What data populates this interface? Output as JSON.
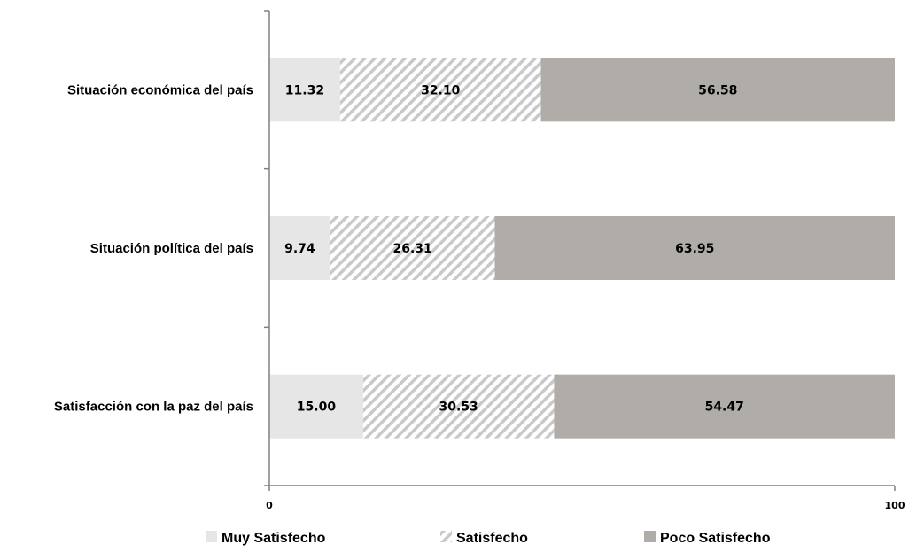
{
  "chart_data": {
    "type": "bar",
    "orientation": "horizontal",
    "stacked": true,
    "categories": [
      "Situación económica del país",
      "Situación política del país",
      "Satisfacción con la paz del país"
    ],
    "series": [
      {
        "name": "Muy Satisfecho",
        "values": [
          11.32,
          9.74,
          15.0
        ],
        "labels": [
          "11.32",
          "9.74",
          "15.00"
        ],
        "color": "#e7e6e6",
        "pattern": "solid"
      },
      {
        "name": "Satisfecho",
        "values": [
          32.1,
          26.31,
          30.53
        ],
        "labels": [
          "32.10",
          "26.31",
          "30.53"
        ],
        "color": "#c9c9c9",
        "pattern": "diagonal-stripes"
      },
      {
        "name": "Poco Satisfecho",
        "values": [
          56.58,
          63.95,
          54.47
        ],
        "labels": [
          "56.58",
          "63.95",
          "54.47"
        ],
        "color": "#b0aca7",
        "pattern": "solid"
      }
    ],
    "xlim": [
      0,
      100
    ],
    "x_ticks": [
      "0",
      "100"
    ],
    "title": "",
    "xlabel": "",
    "ylabel": "",
    "grid": false,
    "legend_position": "bottom"
  }
}
